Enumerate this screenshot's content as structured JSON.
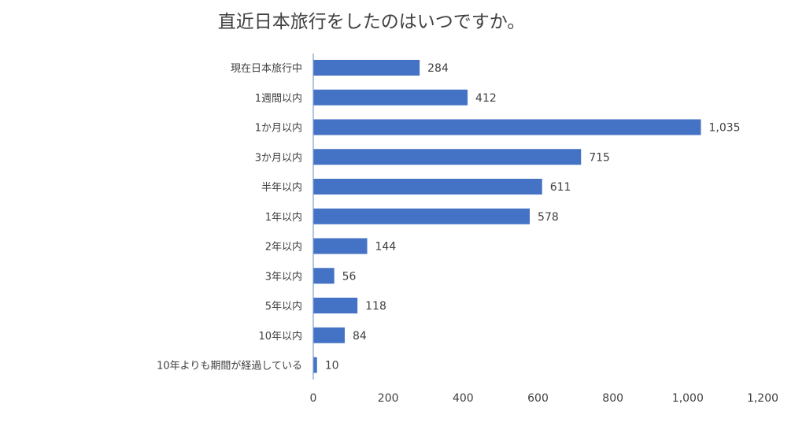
{
  "chart_data": {
    "type": "bar",
    "orientation": "horizontal",
    "title": "直近日本旅行をしたのはいつですか。",
    "categories": [
      "現在日本旅行中",
      "1週間以内",
      "1か月以内",
      "3か月以内",
      "半年以内",
      "1年以内",
      "2年以内",
      "3年以内",
      "5年以内",
      "10年以内",
      "10年よりも期間が経過している"
    ],
    "values": [
      284,
      412,
      1035,
      715,
      611,
      578,
      144,
      56,
      118,
      84,
      10
    ],
    "value_labels": [
      "284",
      "412",
      "1,035",
      "715",
      "611",
      "578",
      "144",
      "56",
      "118",
      "84",
      "10"
    ],
    "xlim": [
      0,
      1200
    ],
    "xticks": [
      0,
      200,
      400,
      600,
      800,
      1000,
      1200
    ],
    "xtick_labels": [
      "0",
      "200",
      "400",
      "600",
      "800",
      "1,000",
      "1,200"
    ],
    "grid": false,
    "bar_color": "#4472C4",
    "axis_color": "#7F9CC9",
    "text_color": "#404040"
  }
}
